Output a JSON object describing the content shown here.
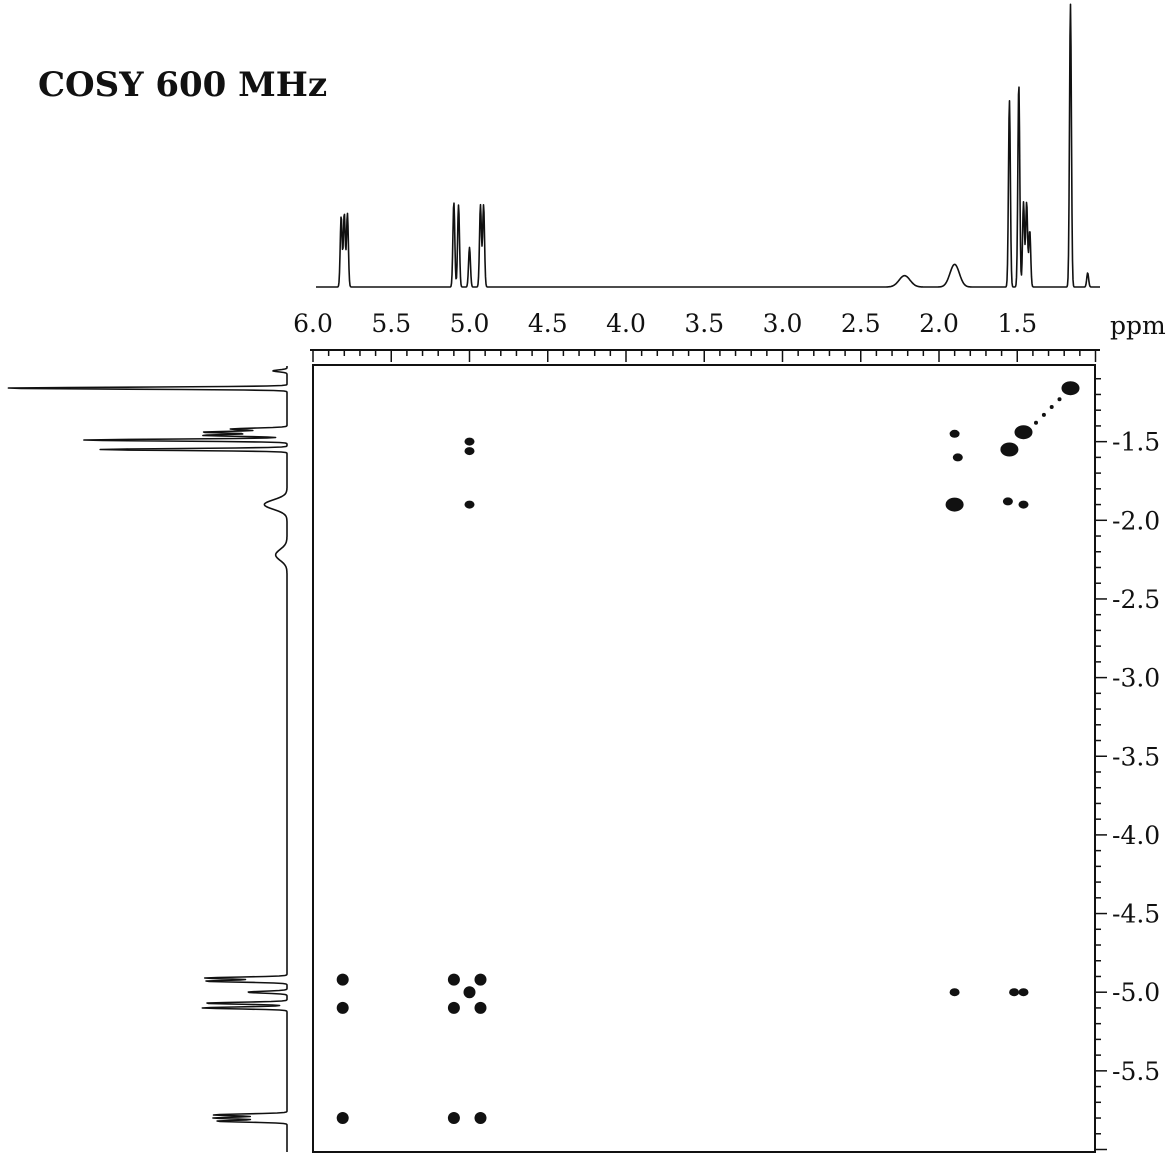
{
  "chart_data": {
    "type": "scatter",
    "title": "COSY 600 MHz",
    "unit": "ppm",
    "x_axis": {
      "range": [
        6.0,
        1.0
      ],
      "tick_labels": [
        "6.0",
        "5.5",
        "5.0",
        "4.5",
        "4.0",
        "3.5",
        "3.0",
        "2.5",
        "2.0",
        "1.5"
      ],
      "tick_values": [
        6.0,
        5.5,
        5.0,
        4.5,
        4.0,
        3.5,
        3.0,
        2.5,
        2.0,
        1.5
      ]
    },
    "y_axis": {
      "range": [
        1.0,
        6.0
      ],
      "tick_labels": [
        "1.5",
        "2.0",
        "2.5",
        "3.0",
        "3.5",
        "4.0",
        "4.5",
        "5.0",
        "5.5"
      ],
      "tick_values": [
        1.5,
        2.0,
        2.5,
        3.0,
        3.5,
        4.0,
        4.5,
        5.0,
        5.5
      ]
    },
    "grid": false,
    "projection_1d": {
      "peaks": [
        {
          "ppm": 5.8,
          "height": 0.26
        },
        {
          "ppm": 5.78,
          "height": 0.26
        },
        {
          "ppm": 5.82,
          "height": 0.25
        },
        {
          "ppm": 5.1,
          "height": 0.3
        },
        {
          "ppm": 5.07,
          "height": 0.29
        },
        {
          "ppm": 5.0,
          "height": 0.14
        },
        {
          "ppm": 4.93,
          "height": 0.29
        },
        {
          "ppm": 4.91,
          "height": 0.29
        },
        {
          "ppm": 2.22,
          "height": 0.04
        },
        {
          "ppm": 1.9,
          "height": 0.08
        },
        {
          "ppm": 1.55,
          "height": 0.66
        },
        {
          "ppm": 1.49,
          "height": 0.72
        },
        {
          "ppm": 1.46,
          "height": 0.3
        },
        {
          "ppm": 1.44,
          "height": 0.3
        },
        {
          "ppm": 1.42,
          "height": 0.2
        },
        {
          "ppm": 1.16,
          "height": 1.0
        },
        {
          "ppm": 1.05,
          "height": 0.05
        }
      ]
    },
    "cross_peaks": [
      {
        "x": 5.81,
        "y": 4.92
      },
      {
        "x": 5.81,
        "y": 5.1
      },
      {
        "x": 5.81,
        "y": 5.8
      },
      {
        "x": 5.1,
        "y": 5.8
      },
      {
        "x": 4.93,
        "y": 5.8
      },
      {
        "x": 5.1,
        "y": 4.92
      },
      {
        "x": 4.93,
        "y": 4.92
      },
      {
        "x": 5.0,
        "y": 5.0
      },
      {
        "x": 5.1,
        "y": 5.1
      },
      {
        "x": 4.93,
        "y": 5.1
      },
      {
        "x": 5.0,
        "y": 1.5
      },
      {
        "x": 5.0,
        "y": 1.56
      },
      {
        "x": 5.0,
        "y": 1.9
      },
      {
        "x": 1.9,
        "y": 1.45
      },
      {
        "x": 1.9,
        "y": 1.9
      },
      {
        "x": 1.9,
        "y": 5.0
      },
      {
        "x": 1.55,
        "y": 1.55
      },
      {
        "x": 1.46,
        "y": 1.44
      },
      {
        "x": 1.46,
        "y": 1.9
      },
      {
        "x": 1.46,
        "y": 5.0
      },
      {
        "x": 1.52,
        "y": 5.0
      },
      {
        "x": 1.56,
        "y": 1.88
      },
      {
        "x": 1.88,
        "y": 1.6
      },
      {
        "x": 1.16,
        "y": 1.16
      }
    ]
  }
}
